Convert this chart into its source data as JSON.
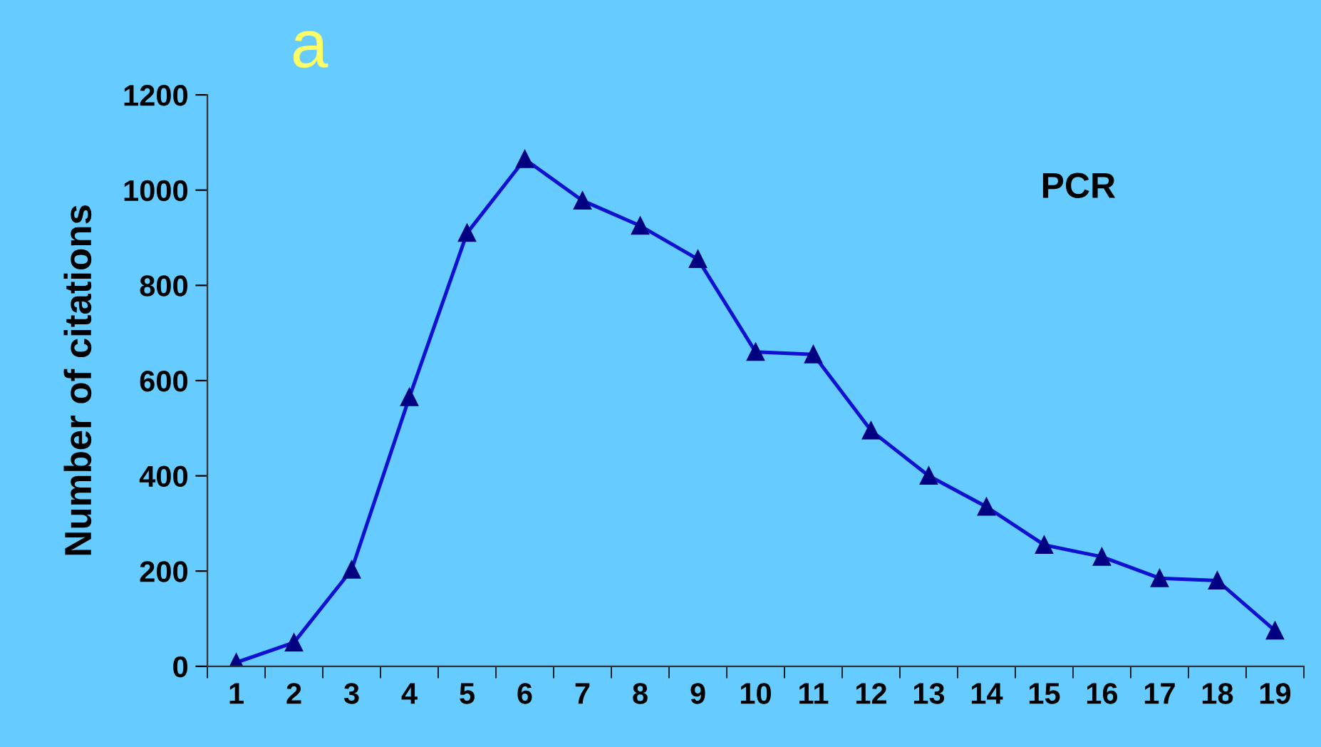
{
  "chart_data": {
    "type": "line",
    "title": "a",
    "ylabel": "Number of citations",
    "categories": [
      "1",
      "2",
      "3",
      "4",
      "5",
      "6",
      "7",
      "8",
      "9",
      "10",
      "11",
      "12",
      "13",
      "14",
      "15",
      "16",
      "17",
      "18",
      "19"
    ],
    "series": [
      {
        "color": "#1010d0",
        "values": [
          8,
          50,
          203,
          565,
          910,
          1065,
          978,
          925,
          855,
          660,
          655,
          495,
          400,
          335,
          255,
          230,
          185,
          180,
          75
        ]
      }
    ],
    "annotations": [
      "PCR"
    ],
    "ylim": [
      0,
      1200
    ],
    "yticks": [
      0,
      200,
      400,
      600,
      800,
      1000,
      1200
    ],
    "marker": "triangle",
    "line_style": "solid",
    "grid": false,
    "legend": false
  }
}
